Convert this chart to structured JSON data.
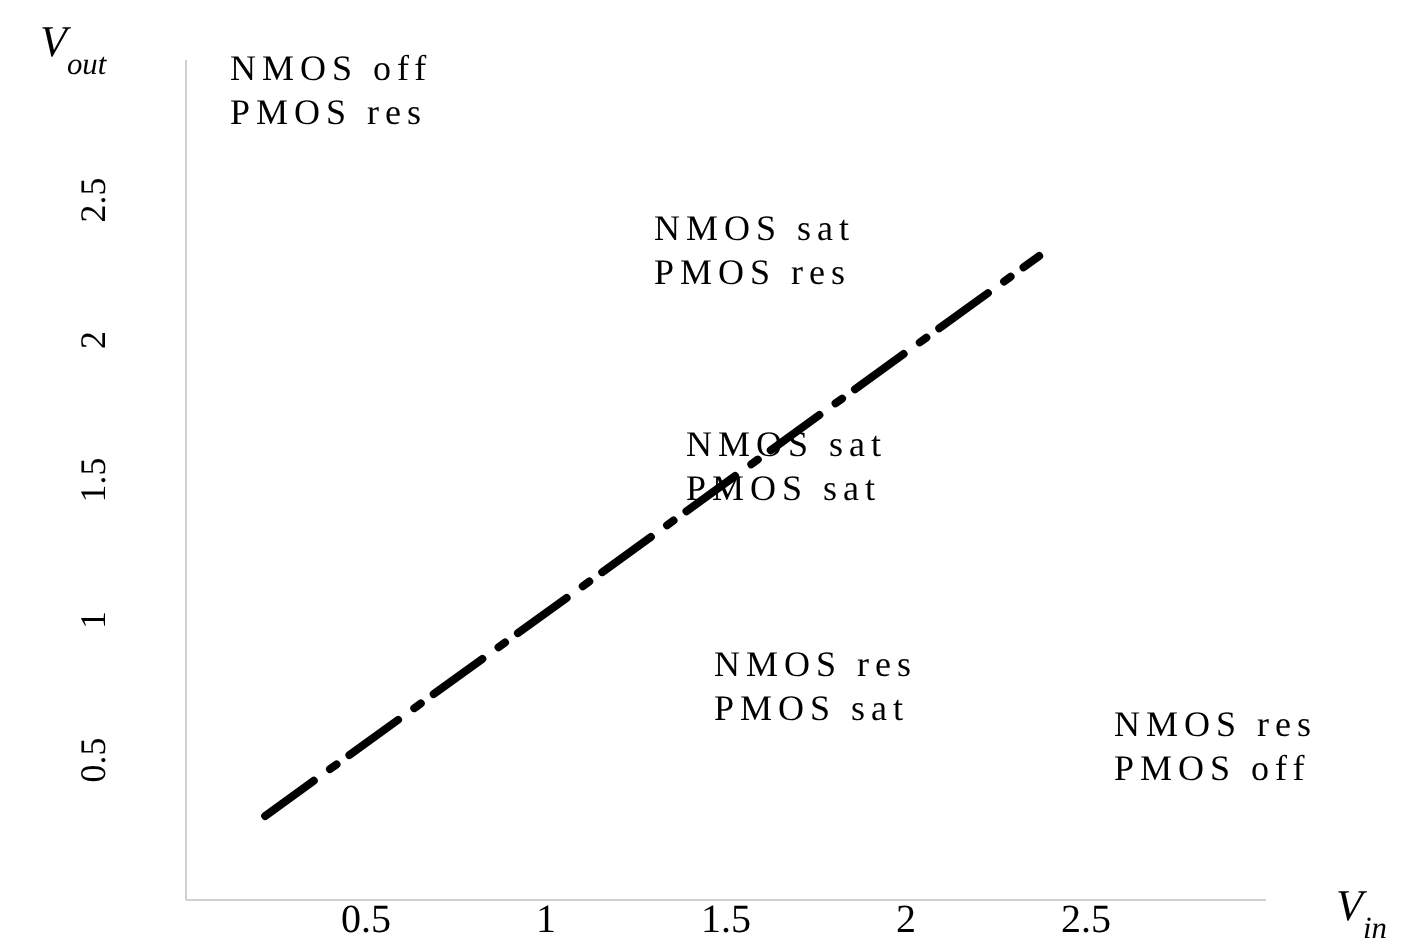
{
  "chart_data": {
    "type": "line",
    "xlabel": "V$_{in}$",
    "ylabel": "V$_{out}$",
    "x": [
      0.22,
      2.37
    ],
    "series": [
      {
        "type": "line",
        "color": "#000000",
        "values": [
          0.3,
          2.3
        ]
      }
    ],
    "xlim": [
      0,
      3
    ],
    "ylim": [
      0,
      3
    ],
    "xticks": [
      0.5,
      1,
      1.5,
      2,
      2.5
    ],
    "yticks": [
      0.5,
      1,
      1.5,
      2,
      2.5
    ],
    "grid": false,
    "legend": false,
    "marker": "none",
    "line_style": "dashed",
    "annotations": [
      "NMOS off\nPMOS res",
      "NMOS sat\nPMOS res",
      "NMOS sat\nPMOS sat",
      "NMOS res\nPMOS sat",
      "NMOS res\nPMOS off"
    ]
  }
}
